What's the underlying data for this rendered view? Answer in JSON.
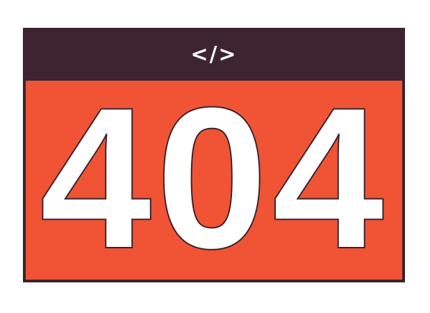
{
  "header": {
    "icon": "code-brackets-icon",
    "icon_glyph": "</>"
  },
  "main": {
    "error_code": "404"
  },
  "colors": {
    "header_background": "#3e2331",
    "content_background": "#f05434",
    "text": "#ffffff",
    "outline": "#3a2330"
  }
}
